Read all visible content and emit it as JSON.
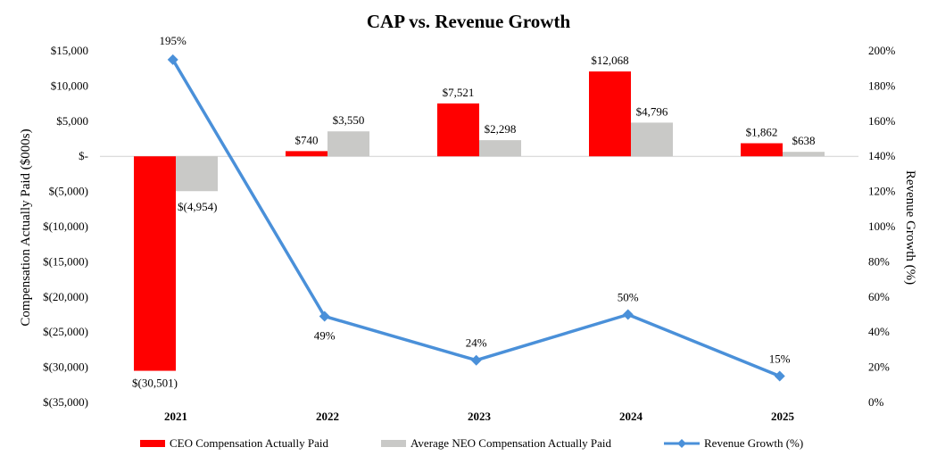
{
  "chart_data": {
    "type": "bar",
    "title": "CAP vs. Revenue Growth",
    "categories": [
      "2021",
      "2022",
      "2023",
      "2024",
      "2025"
    ],
    "ylabel": "Compensation Actually Paid ($000s)",
    "y2label": "Revenue Growth (%)",
    "ylim": [
      -35000,
      15000
    ],
    "y2lim": [
      0,
      200
    ],
    "yticks": [
      {
        "value": 15000,
        "label": "$15,000"
      },
      {
        "value": 10000,
        "label": "$10,000"
      },
      {
        "value": 5000,
        "label": "$5,000"
      },
      {
        "value": 0,
        "label": "$-"
      },
      {
        "value": -5000,
        "label": "$(5,000)"
      },
      {
        "value": -10000,
        "label": "$(10,000)"
      },
      {
        "value": -15000,
        "label": "$(15,000)"
      },
      {
        "value": -20000,
        "label": "$(20,000)"
      },
      {
        "value": -25000,
        "label": "$(25,000)"
      },
      {
        "value": -30000,
        "label": "$(30,000)"
      },
      {
        "value": -35000,
        "label": "$(35,000)"
      }
    ],
    "y2ticks": [
      {
        "value": 200,
        "label": "200%"
      },
      {
        "value": 180,
        "label": "180%"
      },
      {
        "value": 160,
        "label": "160%"
      },
      {
        "value": 140,
        "label": "140%"
      },
      {
        "value": 120,
        "label": "120%"
      },
      {
        "value": 100,
        "label": "100%"
      },
      {
        "value": 80,
        "label": "80%"
      },
      {
        "value": 60,
        "label": "60%"
      },
      {
        "value": 40,
        "label": "40%"
      },
      {
        "value": 20,
        "label": "20%"
      },
      {
        "value": 0,
        "label": "0%"
      }
    ],
    "series": [
      {
        "name": "CEO Compensation Actually Paid",
        "kind": "bar",
        "color": "#ff0000",
        "values": [
          -30501,
          740,
          7521,
          12068,
          1862
        ],
        "labels": [
          "$(30,501)",
          "$740",
          "$7,521",
          "$12,068",
          "$1,862"
        ]
      },
      {
        "name": "Average NEO Compensation Actually Paid",
        "kind": "bar",
        "color": "#c9c9c7",
        "values": [
          -4954,
          3550,
          2298,
          4796,
          638
        ],
        "labels": [
          "$(4,954)",
          "$3,550",
          "$2,298",
          "$4,796",
          "$638"
        ]
      },
      {
        "name": "Revenue Growth (%)",
        "kind": "line",
        "axis": "y2",
        "color": "#4a90d9",
        "values": [
          195,
          49,
          24,
          50,
          15
        ],
        "labels": [
          "195%",
          "49%",
          "24%",
          "50%",
          "15%"
        ]
      }
    ],
    "legend_position": "bottom",
    "grid": false
  }
}
